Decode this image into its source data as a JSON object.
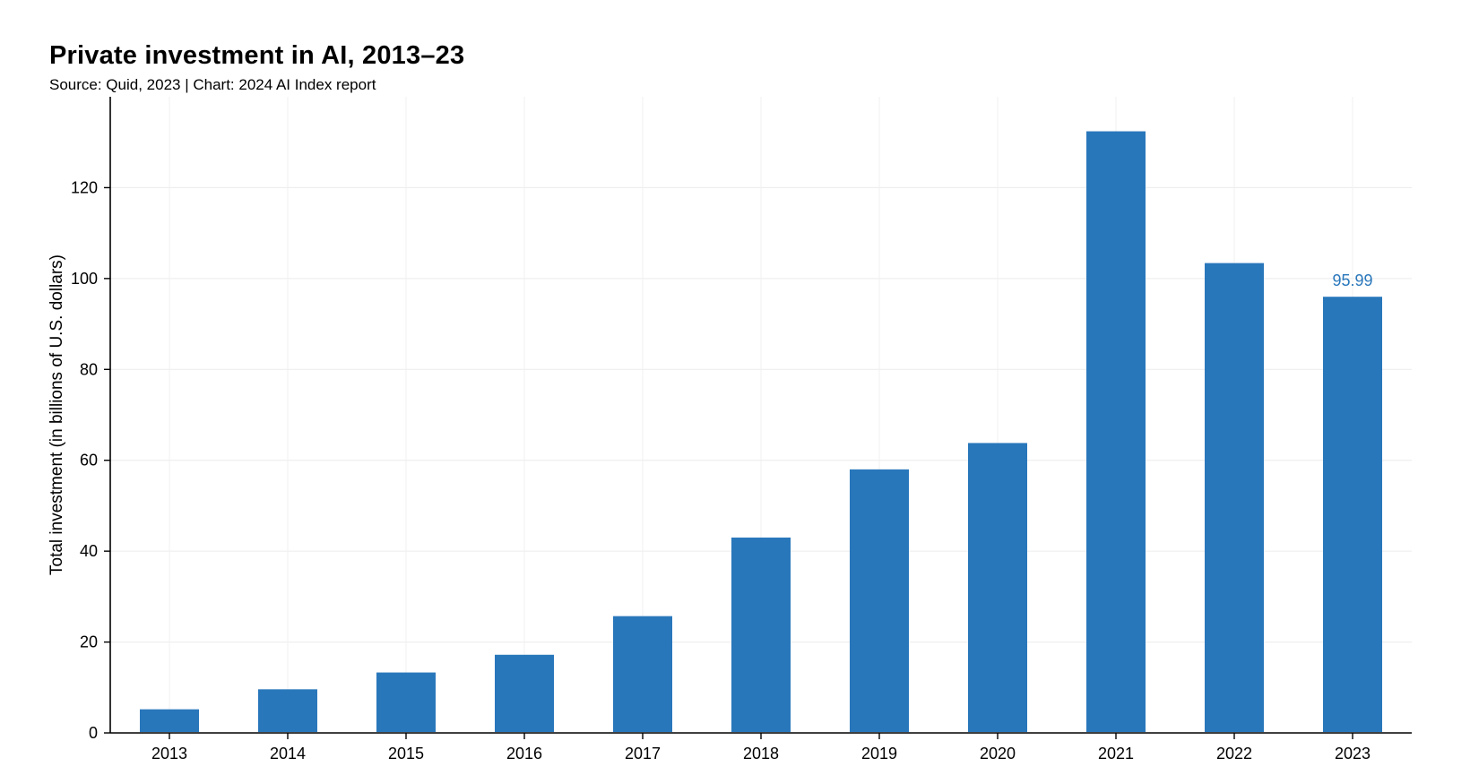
{
  "header": {
    "title": "Private investment in AI, 2013–23",
    "subtitle": "Source: Quid, 2023 | Chart: 2024 AI Index report"
  },
  "chart_data": {
    "type": "bar",
    "title": "Private investment in AI, 2013–23",
    "subtitle": "Source: Quid, 2023 | Chart: 2024 AI Index report",
    "xlabel": "",
    "ylabel": "Total investment (in billions of U.S. dollars)",
    "categories": [
      "2013",
      "2014",
      "2015",
      "2016",
      "2017",
      "2018",
      "2019",
      "2020",
      "2021",
      "2022",
      "2023"
    ],
    "values": [
      5.2,
      9.6,
      13.3,
      17.2,
      25.7,
      43.0,
      58.0,
      63.8,
      132.4,
      103.4,
      95.99
    ],
    "ylim": [
      0,
      140
    ],
    "yticks": [
      0,
      20,
      40,
      60,
      80,
      100,
      120
    ],
    "data_labels": [
      {
        "category": "2023",
        "text": "95.99"
      }
    ],
    "bar_color": "#2977BB",
    "label_color": "#2977BB",
    "grid": true,
    "legend": "none"
  }
}
